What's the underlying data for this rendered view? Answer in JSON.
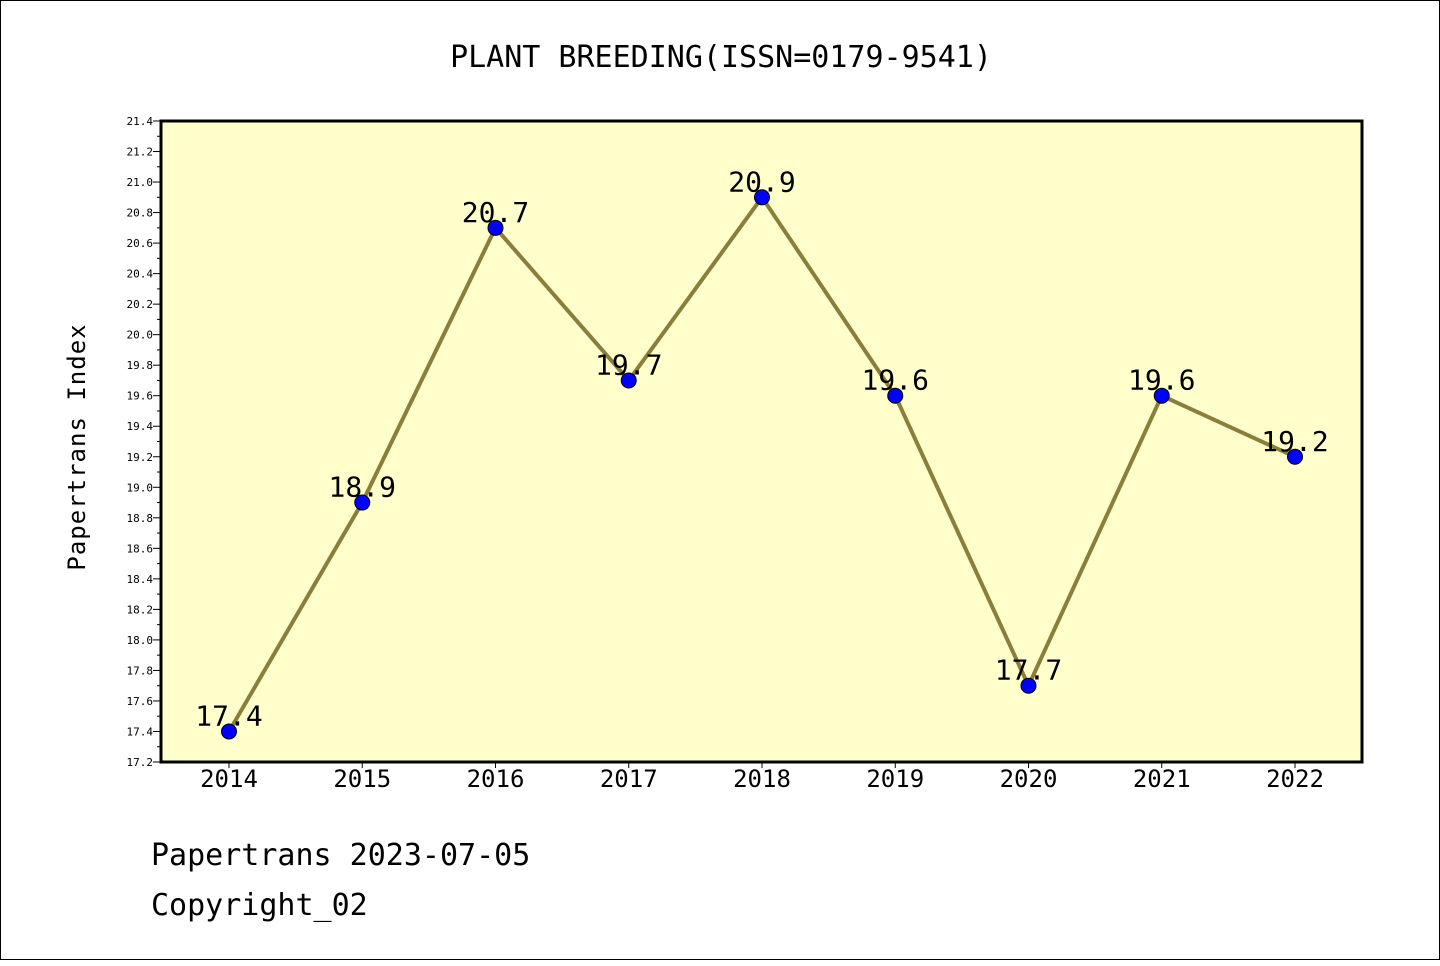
{
  "chart_data": {
    "type": "line",
    "title": "PLANT BREEDING(ISSN=0179-9541)",
    "xlabel": "",
    "ylabel": "Papertrans Index",
    "categories": [
      "2014",
      "2015",
      "2016",
      "2017",
      "2018",
      "2019",
      "2020",
      "2021",
      "2022"
    ],
    "series": [
      {
        "values": [
          17.4,
          18.9,
          20.7,
          19.7,
          20.9,
          19.6,
          17.7,
          19.6,
          19.2
        ],
        "data_labels": [
          "17.4",
          "18.9",
          "20.7",
          "19.7",
          "20.9",
          "19.6",
          "17.7",
          "19.6",
          "19.2"
        ]
      }
    ],
    "ylim": [
      17.2,
      21.4
    ],
    "yticks": [
      "17.2",
      "17.4",
      "17.6",
      "17.8",
      "18.0",
      "18.2",
      "18.4",
      "18.6",
      "18.8",
      "19.0",
      "19.2",
      "19.4",
      "19.6",
      "19.8",
      "20.0",
      "20.2",
      "20.4",
      "20.6",
      "20.8",
      "21.0",
      "21.2",
      "21.4"
    ],
    "grid": false,
    "legend": "none"
  },
  "footer": {
    "line1": "Papertrans 2023-07-05",
    "line2": "Copyright_02"
  },
  "colors": {
    "plot_background": "#ffffcc",
    "line": "#8b7d3a",
    "marker": "#0000ff",
    "axis": "#000000"
  }
}
